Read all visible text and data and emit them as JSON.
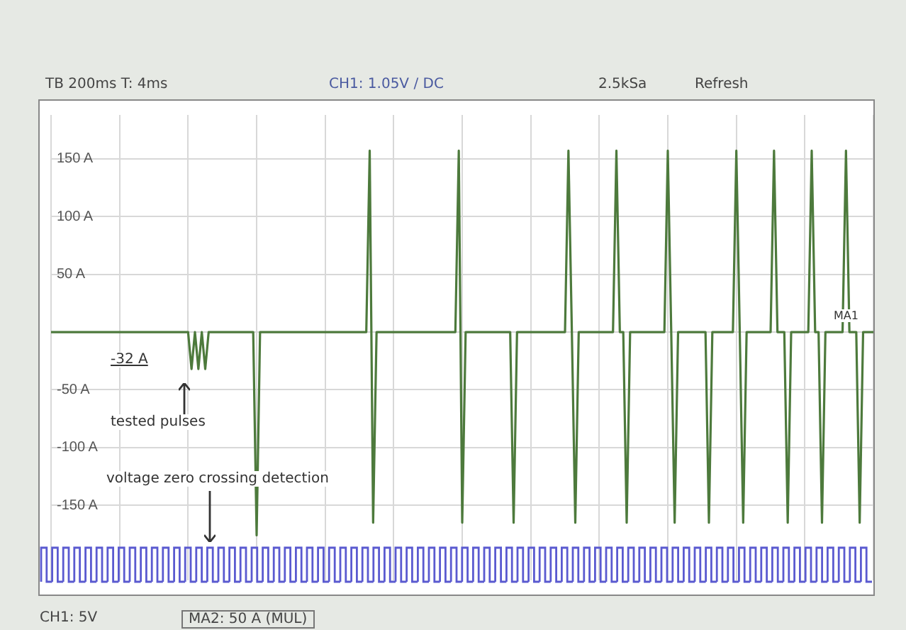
{
  "chart_data": {
    "type": "line",
    "annotations": [
      "TB 200ms  T: 4ms",
      "CH1: 1.05V / DC",
      "2.5kSa",
      "Refresh",
      "-32 A",
      "tested pulses",
      "voltage zero crossing detection",
      "CH1: 5V",
      "MA2: 50 A (MUL)",
      "MA1"
    ],
    "categories": [
      null,
      null,
      null,
      null,
      null,
      null,
      null,
      null,
      null,
      null,
      null,
      null,
      null,
      null,
      null,
      null,
      null,
      null,
      null,
      null,
      null,
      null,
      null,
      null,
      null,
      null,
      null,
      null,
      null,
      null,
      null,
      null,
      null,
      null,
      null,
      null,
      null,
      null,
      null,
      null,
      null,
      null,
      null,
      null,
      null,
      null,
      null,
      null,
      null,
      null,
      null,
      null,
      null,
      null,
      null,
      null,
      null,
      null,
      null,
      null,
      null,
      null,
      null,
      null,
      null,
      null,
      null,
      null,
      null,
      null,
      null,
      null,
      null,
      null,
      null,
      null,
      null,
      null,
      null,
      null,
      null,
      null,
      null,
      null,
      null,
      null,
      null,
      null,
      null,
      null,
      null,
      null,
      null,
      null,
      null,
      null,
      null,
      null,
      null,
      null,
      null,
      null,
      null,
      null,
      null,
      null,
      null,
      null,
      null,
      null,
      null,
      null,
      null,
      null,
      null,
      null,
      null,
      null,
      null,
      null,
      null,
      null,
      null,
      null,
      null,
      null,
      null,
      null,
      null,
      null,
      null,
      null,
      null,
      null,
      null,
      null,
      null,
      null,
      null,
      null,
      null,
      null,
      null,
      null,
      null,
      null,
      null,
      null,
      null,
      null,
      null,
      null,
      null,
      null,
      null,
      null,
      null,
      null,
      null,
      null,
      null,
      null,
      null,
      null,
      null,
      null,
      null,
      null,
      null,
      null,
      null,
      null,
      null,
      null,
      null,
      null,
      null,
      null,
      null,
      null,
      null,
      null,
      null,
      null,
      null,
      null,
      null,
      null,
      null,
      null,
      null,
      null,
      null,
      null,
      null,
      null,
      null,
      null,
      null,
      null,
      null,
      null,
      null,
      null,
      null,
      null,
      null,
      null,
      null,
      null,
      null,
      null,
      null,
      null,
      null,
      null,
      null,
      null,
      null,
      null,
      null,
      null,
      null,
      null,
      null,
      null,
      null,
      null,
      null,
      null,
      null,
      null,
      null,
      null,
      null,
      null,
      null,
      null,
      null,
      null,
      null
    ],
    "series": [
      {
        "color": "#4d7a3c",
        "values": [
          0,
          0,
          0,
          0,
          0,
          0,
          0,
          0,
          0,
          0,
          0,
          0,
          0,
          0,
          0,
          0,
          0,
          0,
          0,
          0,
          0,
          0,
          0,
          0,
          0,
          0,
          0,
          0,
          0,
          0,
          0,
          0,
          0,
          0,
          0,
          0,
          0,
          0,
          0,
          0,
          0,
          -32,
          0,
          -32,
          0,
          -32,
          0,
          0,
          0,
          0,
          0,
          0,
          0,
          0,
          0,
          0,
          0,
          0,
          0,
          0,
          -176,
          0,
          0,
          0,
          0,
          0,
          0,
          0,
          0,
          0,
          0,
          0,
          0,
          0,
          0,
          0,
          0,
          0,
          0,
          0,
          0,
          0,
          0,
          0,
          0,
          0,
          0,
          0,
          0,
          0,
          0,
          0,
          0,
          157,
          -165,
          0,
          0,
          0,
          0,
          0,
          0,
          0,
          0,
          0,
          0,
          0,
          0,
          0,
          0,
          0,
          0,
          0,
          0,
          0,
          0,
          0,
          0,
          0,
          0,
          157,
          -165,
          0,
          0,
          0,
          0,
          0,
          0,
          0,
          0,
          0,
          0,
          0,
          0,
          0,
          0,
          -165,
          0,
          0,
          0,
          0,
          0,
          0,
          0,
          0,
          0,
          0,
          0,
          0,
          0,
          0,
          0,
          157,
          0,
          -165,
          0,
          0,
          0,
          0,
          0,
          0,
          0,
          0,
          0,
          0,
          0,
          157,
          0,
          0,
          -165,
          0,
          0,
          0,
          0,
          0,
          0,
          0,
          0,
          0,
          0,
          0,
          157,
          0,
          -165,
          0,
          0,
          0,
          0,
          0,
          0,
          0,
          0,
          0,
          -165,
          0,
          0,
          0,
          0,
          0,
          0,
          0,
          157,
          0,
          -165,
          0,
          0,
          0,
          0,
          0,
          0,
          0,
          0,
          157,
          0,
          0,
          0,
          -165,
          0,
          0,
          0,
          0,
          0,
          0,
          157,
          0,
          0,
          -165,
          0,
          0,
          0,
          0,
          0,
          0,
          157,
          0,
          0,
          0,
          -165,
          0,
          0,
          0,
          0
        ]
      }
    ],
    "ylim": [
      -215,
      188
    ],
    "yticks": [
      {
        "value": -150,
        "label": "-150 A"
      },
      {
        "value": -100,
        "label": "-100 A"
      },
      {
        "value": -50,
        "label": "-50 A"
      },
      {
        "value": 0,
        "label": null
      },
      {
        "value": 50,
        "label": "50 A"
      },
      {
        "value": 100,
        "label": "100 A"
      },
      {
        "value": 150,
        "label": "150 A"
      }
    ],
    "tick_labels": "y",
    "grid": true,
    "marker": "none",
    "line_style": "solid"
  }
}
